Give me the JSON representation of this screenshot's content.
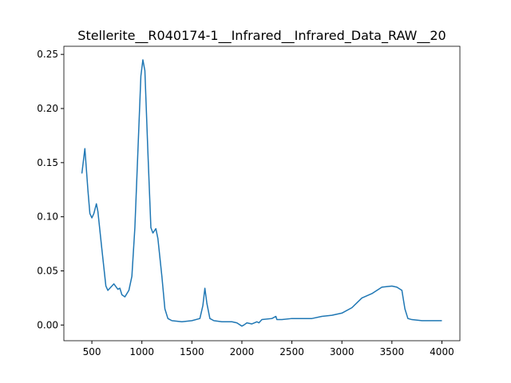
{
  "chart_data": {
    "type": "line",
    "title": "Stellerite__R040174-1__Infrared__Infrared_Data_RAW__20",
    "x": [
      400,
      430,
      460,
      480,
      500,
      520,
      545,
      560,
      600,
      640,
      660,
      700,
      720,
      760,
      780,
      800,
      830,
      870,
      900,
      930,
      960,
      990,
      1010,
      1030,
      1060,
      1090,
      1110,
      1140,
      1160,
      1200,
      1230,
      1260,
      1300,
      1400,
      1500,
      1580,
      1610,
      1630,
      1650,
      1680,
      1720,
      1800,
      1900,
      1950,
      2000,
      2020,
      2050,
      2100,
      2150,
      2170,
      2200,
      2300,
      2340,
      2350,
      2400,
      2500,
      2600,
      2700,
      2800,
      2900,
      3000,
      3100,
      3200,
      3250,
      3300,
      3400,
      3500,
      3550,
      3600,
      3630,
      3660,
      3700,
      3800,
      3900,
      4000
    ],
    "series": [
      {
        "name": "Stellerite",
        "color": "#1f77b4",
        "values": [
          0.14,
          0.163,
          0.125,
          0.103,
          0.099,
          0.103,
          0.112,
          0.105,
          0.07,
          0.036,
          0.032,
          0.036,
          0.038,
          0.033,
          0.034,
          0.028,
          0.026,
          0.032,
          0.045,
          0.09,
          0.16,
          0.23,
          0.245,
          0.235,
          0.16,
          0.09,
          0.085,
          0.089,
          0.08,
          0.045,
          0.015,
          0.006,
          0.004,
          0.003,
          0.004,
          0.006,
          0.018,
          0.034,
          0.02,
          0.006,
          0.004,
          0.003,
          0.003,
          0.002,
          -0.001,
          0.0,
          0.002,
          0.001,
          0.003,
          0.002,
          0.005,
          0.006,
          0.008,
          0.005,
          0.005,
          0.006,
          0.006,
          0.006,
          0.008,
          0.009,
          0.011,
          0.016,
          0.025,
          0.027,
          0.029,
          0.035,
          0.036,
          0.035,
          0.032,
          0.015,
          0.006,
          0.005,
          0.004,
          0.004,
          0.004
        ]
      }
    ],
    "xlim": [
      220,
      4180
    ],
    "ylim": [
      -0.0145,
      0.2575
    ],
    "xticks": [
      500,
      1000,
      1500,
      2000,
      2500,
      3000,
      3500,
      4000
    ],
    "yticks": [
      {
        "value": 0,
        "label": "0.00"
      },
      {
        "value": 0.05,
        "label": "0.05"
      },
      {
        "value": 0.1,
        "label": "0.10"
      },
      {
        "value": 0.15,
        "label": "0.15"
      },
      {
        "value": 0.2,
        "label": "0.20"
      },
      {
        "value": 0.25,
        "label": "0.25"
      }
    ]
  }
}
